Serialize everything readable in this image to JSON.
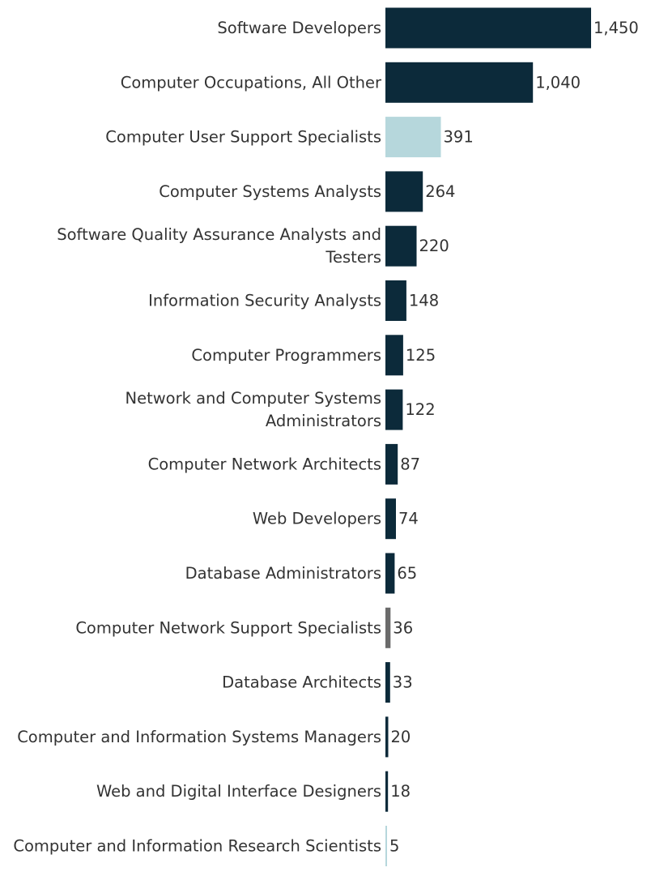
{
  "chart_data": {
    "type": "bar",
    "orientation": "horizontal",
    "title": "",
    "xlabel": "",
    "ylabel": "",
    "grid": false,
    "legend": "none",
    "xlim": [
      0,
      1450
    ],
    "categories": [
      [
        "Software Developers"
      ],
      [
        "Computer Occupations, All Other"
      ],
      [
        "Computer User Support Specialists"
      ],
      [
        "Computer Systems Analysts"
      ],
      [
        "Software Quality Assurance Analysts and",
        "Testers"
      ],
      [
        "Information Security Analysts"
      ],
      [
        "Computer Programmers"
      ],
      [
        "Network and Computer Systems",
        "Administrators"
      ],
      [
        "Computer Network Architects"
      ],
      [
        "Web Developers"
      ],
      [
        "Database Administrators"
      ],
      [
        "Computer Network Support Specialists"
      ],
      [
        "Database Architects"
      ],
      [
        "Computer and Information Systems Managers"
      ],
      [
        "Web and Digital Interface Designers"
      ],
      [
        "Computer and Information Research Scientists"
      ]
    ],
    "values": [
      1450,
      1040,
      391,
      264,
      220,
      148,
      125,
      122,
      87,
      74,
      65,
      36,
      33,
      20,
      18,
      5
    ],
    "value_labels": [
      "1,450",
      "1,040",
      "391",
      "264",
      "220",
      "148",
      "125",
      "122",
      "87",
      "74",
      "65",
      "36",
      "33",
      "20",
      "18",
      "5"
    ],
    "bar_colors": [
      "#0c2a3a",
      "#0c2a3a",
      "#b6d7dc",
      "#0c2a3a",
      "#0c2a3a",
      "#0c2a3a",
      "#0c2a3a",
      "#0c2a3a",
      "#0c2a3a",
      "#0c2a3a",
      "#0c2a3a",
      "#6b6b6b",
      "#0c2a3a",
      "#0c2a3a",
      "#0c2a3a",
      "#b6d7dc"
    ]
  }
}
